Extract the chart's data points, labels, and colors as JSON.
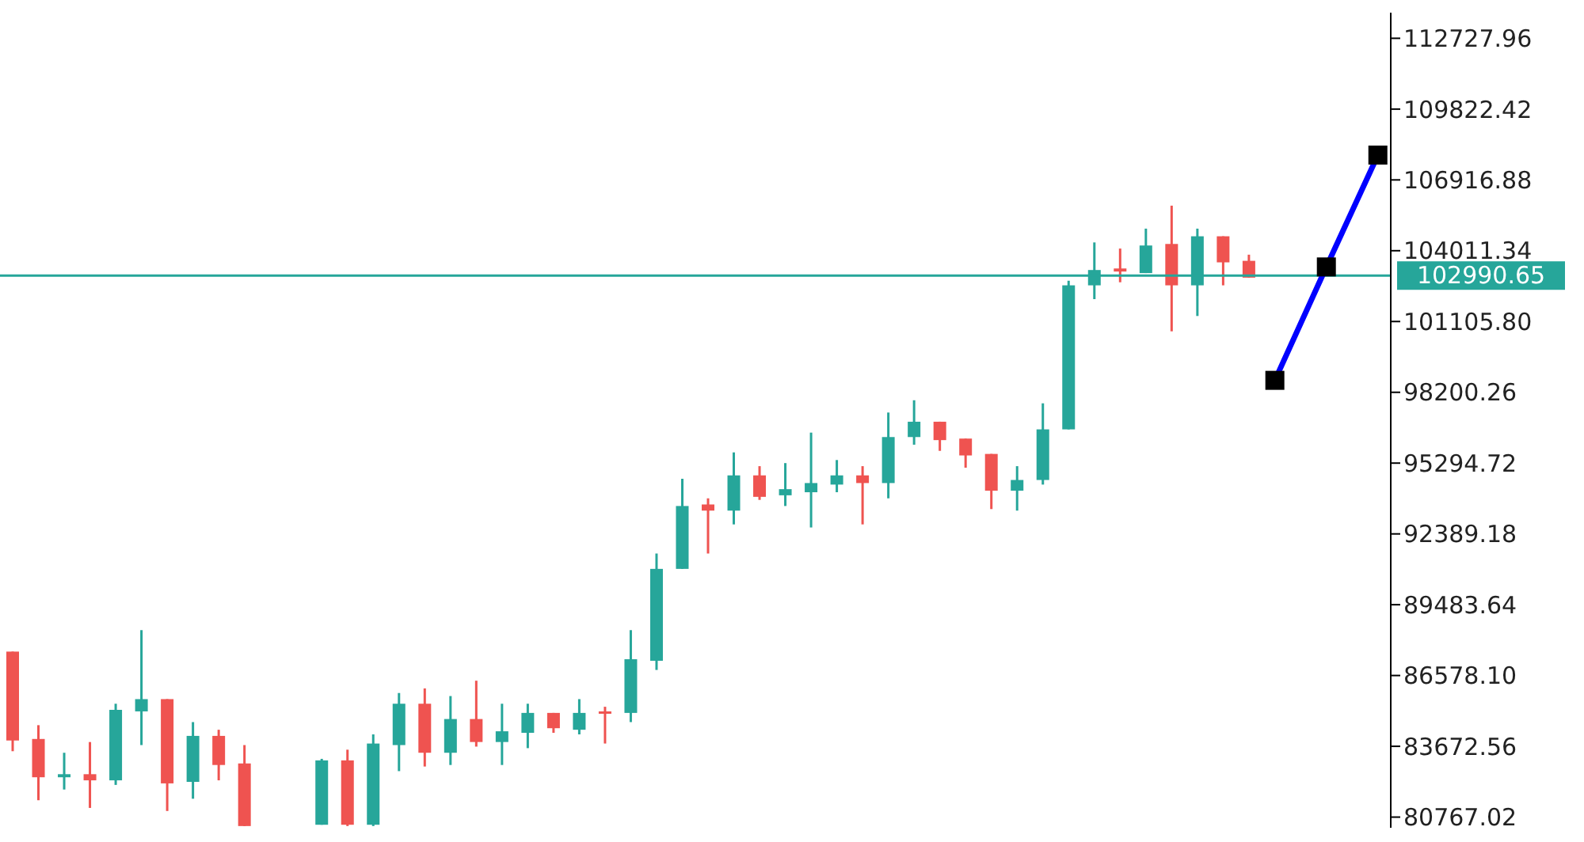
{
  "chart_data": {
    "type": "candlestick",
    "categories": [
      null,
      null,
      null,
      null,
      null,
      null,
      null,
      null,
      null,
      null,
      null,
      null,
      null,
      null,
      null,
      null,
      null,
      null,
      null,
      null,
      null,
      null,
      null,
      null,
      null,
      null,
      null,
      null,
      null,
      null,
      null,
      null,
      null,
      null,
      null,
      null,
      null,
      null,
      null,
      null,
      null,
      null,
      null,
      null,
      null,
      null,
      null,
      null,
      null,
      null,
      null,
      null,
      null,
      null
    ],
    "ohlc": [
      [
        87559,
        87559,
        83471,
        83911
      ],
      [
        83974,
        84540,
        81459,
        82402
      ],
      [
        82402,
        83408,
        81899,
        82528
      ],
      [
        82528,
        83848,
        81144,
        82276
      ],
      [
        82276,
        85420,
        82088,
        85169
      ],
      [
        85106,
        88440,
        83723,
        85609
      ],
      [
        85609,
        85609,
        81018,
        82151
      ],
      [
        82213,
        84666,
        81521,
        84100
      ],
      [
        84100,
        84352,
        82276,
        82906
      ],
      [
        82969,
        83723,
        80400,
        80400
      ],
      null,
      null,
      [
        80453,
        83158,
        80453,
        83095
      ],
      [
        83095,
        83534,
        80400,
        80453
      ],
      [
        80453,
        84163,
        80400,
        83786
      ],
      [
        83723,
        85860,
        82654,
        85420
      ],
      [
        85420,
        86049,
        82843,
        83408
      ],
      [
        83408,
        85735,
        82906,
        84792
      ],
      [
        84792,
        86365,
        83660,
        83849
      ],
      [
        83849,
        85420,
        82906,
        84289
      ],
      [
        84226,
        85420,
        83597,
        85043
      ],
      [
        85043,
        85043,
        84226,
        84415
      ],
      [
        84352,
        85609,
        84163,
        85043
      ],
      [
        85106,
        85295,
        83786,
        85043
      ],
      [
        85043,
        88440,
        84666,
        87246
      ],
      [
        87183,
        91584,
        86806,
        90954
      ],
      [
        90954,
        94652,
        90954,
        93534
      ],
      [
        93597,
        93849,
        91584,
        93345
      ],
      [
        93345,
        95734,
        92779,
        94791
      ],
      [
        94791,
        95169,
        93785,
        93910
      ],
      [
        93974,
        95295,
        93534,
        94225
      ],
      [
        94099,
        96546,
        92653,
        94476
      ],
      [
        94413,
        95421,
        94099,
        94791
      ],
      [
        94791,
        95169,
        92779,
        94476
      ],
      [
        94476,
        97370,
        93849,
        96364
      ],
      [
        96364,
        97874,
        96050,
        96993
      ],
      [
        96993,
        96993,
        95797,
        96238
      ],
      [
        96301,
        96301,
        95106,
        95609
      ],
      [
        95671,
        95671,
        93408,
        94162
      ],
      [
        94162,
        95169,
        93345,
        94602
      ],
      [
        94602,
        97748,
        94413,
        96679
      ],
      [
        96679,
        102779,
        96679,
        102590
      ],
      [
        102590,
        104351,
        102024,
        103219
      ],
      [
        103282,
        104099,
        102716,
        103156
      ],
      [
        103093,
        104917,
        103093,
        104225
      ],
      [
        104288,
        105860,
        100703,
        102590
      ],
      [
        102590,
        104917,
        101332,
        104603
      ],
      [
        104603,
        104603,
        102590,
        103533
      ],
      [
        103596,
        103848,
        102905,
        102905
      ],
      null,
      null,
      null,
      null,
      null
    ],
    "colors": [
      "#ef5350",
      "#ef5350",
      "#26a69a",
      "#ef5350",
      "#26a69a",
      "#26a69a",
      "#ef5350",
      "#26a69a",
      "#ef5350",
      "#ef5350",
      null,
      null,
      "#26a69a",
      "#ef5350",
      "#26a69a",
      "#26a69a",
      "#ef5350",
      "#26a69a",
      "#ef5350",
      "#26a69a",
      "#26a69a",
      "#ef5350",
      "#26a69a",
      "#ef5350",
      "#26a69a",
      "#26a69a",
      "#26a69a",
      "#ef5350",
      "#26a69a",
      "#ef5350",
      "#26a69a",
      "#26a69a",
      "#26a69a",
      "#ef5350",
      "#26a69a",
      "#26a69a",
      "#ef5350",
      "#ef5350",
      "#ef5350",
      "#26a69a",
      "#26a69a",
      "#26a69a",
      "#26a69a",
      "#ef5350",
      "#26a69a",
      "#ef5350",
      "#26a69a",
      "#ef5350",
      "#ef5350",
      null,
      null,
      null,
      null,
      null
    ],
    "series": [
      {
        "type": "line",
        "color": "#0000ff",
        "marker": "square",
        "values": [
          null,
          null,
          null,
          null,
          null,
          null,
          null,
          null,
          null,
          null,
          null,
          null,
          null,
          null,
          null,
          null,
          null,
          null,
          null,
          null,
          null,
          null,
          null,
          null,
          null,
          null,
          null,
          null,
          null,
          null,
          null,
          null,
          null,
          null,
          null,
          null,
          null,
          null,
          null,
          null,
          null,
          null,
          null,
          null,
          null,
          null,
          null,
          null,
          null,
          98691,
          null,
          103345,
          null,
          107936
        ]
      }
    ],
    "ylim": [
      80330,
      113780
    ],
    "yticks": [
      112727.96,
      109822.42,
      106916.88,
      104011.34,
      {
        "value": 101105.8,
        "label": "101105.80"
      },
      98200.26,
      95294.72,
      92389.18,
      89483.64,
      {
        "value": 86578.1,
        "label": "86578.10"
      },
      83672.56,
      80767.02
    ],
    "ref_lines": [
      {
        "axis": "y",
        "value": 102990.65,
        "label": "102990.65",
        "color": "#26a69a"
      }
    ]
  }
}
